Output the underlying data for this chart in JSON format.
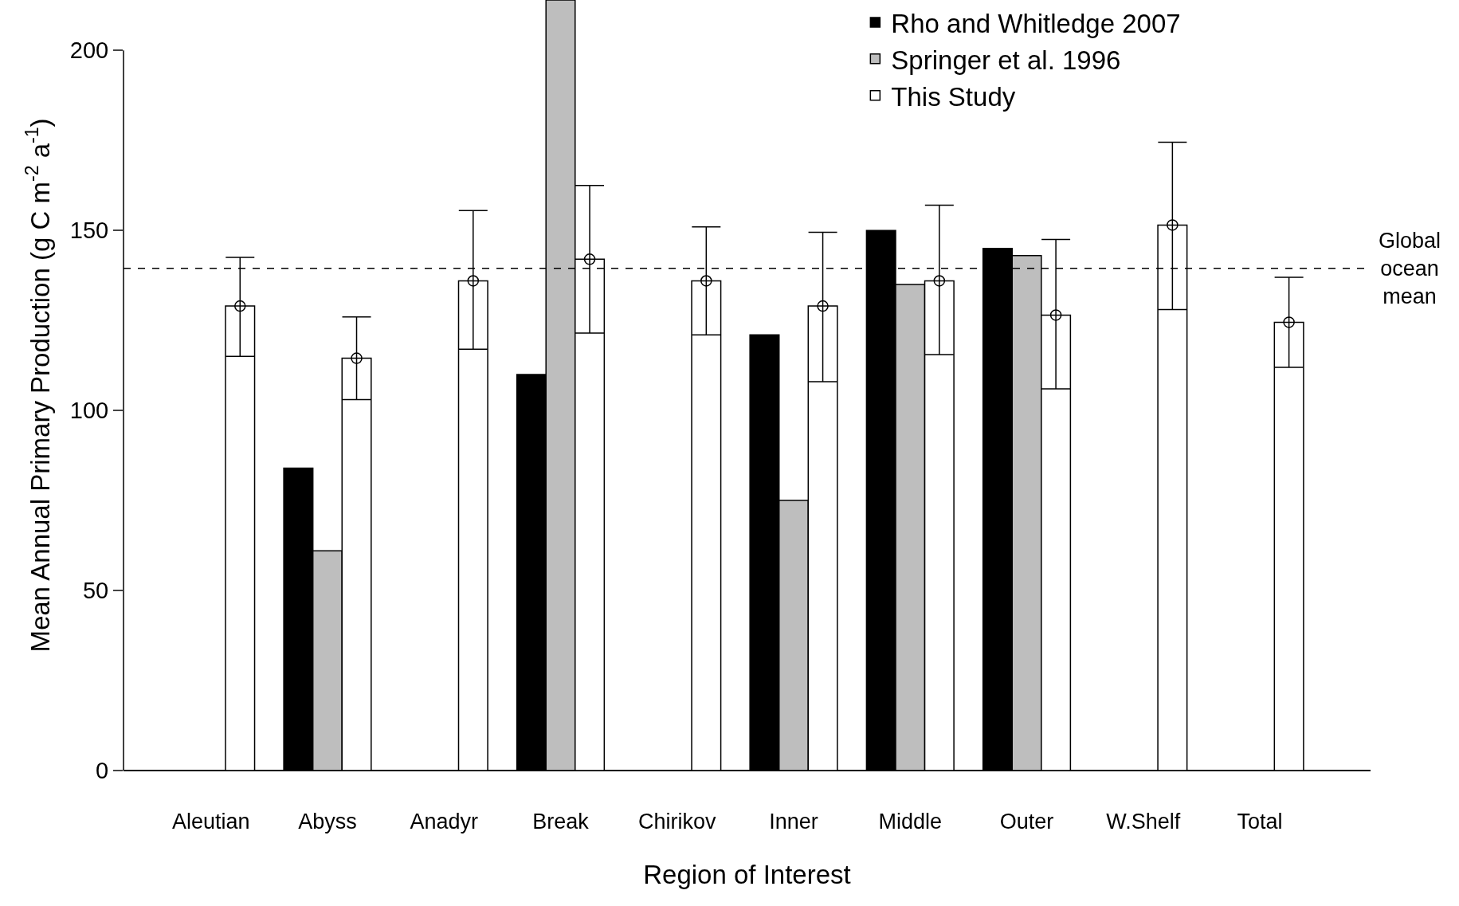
{
  "chart_data": {
    "type": "bar",
    "xlabel": "Region of Interest",
    "ylabel": "Mean Annual Primary Production (g C m$^{-2}$ a$^{-1}$)",
    "categories": [
      "Aleutian",
      "Abyss",
      "Anadyr",
      "Break",
      "Chirikov",
      "Inner",
      "Middle",
      "Outer",
      "W.Shelf",
      "Total"
    ],
    "series": [
      {
        "name": "Rho and Whitledge 2007",
        "color": "#000000",
        "values": [
          null,
          84,
          null,
          110,
          null,
          121,
          150,
          145,
          null,
          null
        ]
      },
      {
        "name": "Springer et al. 1996",
        "color": "#bebebe",
        "values": [
          null,
          61,
          null,
          214,
          null,
          75,
          135,
          143,
          null,
          null
        ]
      },
      {
        "name": "This Study",
        "color": "#ffffff",
        "values": [
          129,
          114.5,
          136,
          142,
          136,
          129,
          136,
          126.5,
          151.5,
          124.5
        ],
        "errors": [
          [
            115,
            142.5
          ],
          [
            103,
            126
          ],
          [
            117,
            155.5
          ],
          [
            121.5,
            162.5
          ],
          [
            121,
            151
          ],
          [
            108,
            149.5
          ],
          [
            115.5,
            157
          ],
          [
            106,
            147.5
          ],
          [
            128,
            174.5
          ],
          [
            112,
            137
          ]
        ]
      },
      {
        "type": "scatter",
        "marker": "circle",
        "color": "#000000",
        "x": [
          "Aleutian",
          "Abyss",
          "Anadyr",
          "Break",
          "Chirikov",
          "Inner",
          "Middle",
          "Outer",
          "W.Shelf",
          "Total"
        ],
        "values": [
          129,
          114.5,
          136,
          142,
          136,
          129,
          136,
          126.5,
          151.5,
          124.5
        ]
      }
    ],
    "ylim": [
      0,
      214
    ],
    "yticks": [
      0,
      50,
      100,
      150,
      200
    ],
    "grid": false,
    "legend": "top right",
    "ref_lines": [
      {
        "axis": "y",
        "value": 139.5,
        "label": "Global ocean mean",
        "line_style": "dashed",
        "color": "#000000"
      }
    ]
  }
}
